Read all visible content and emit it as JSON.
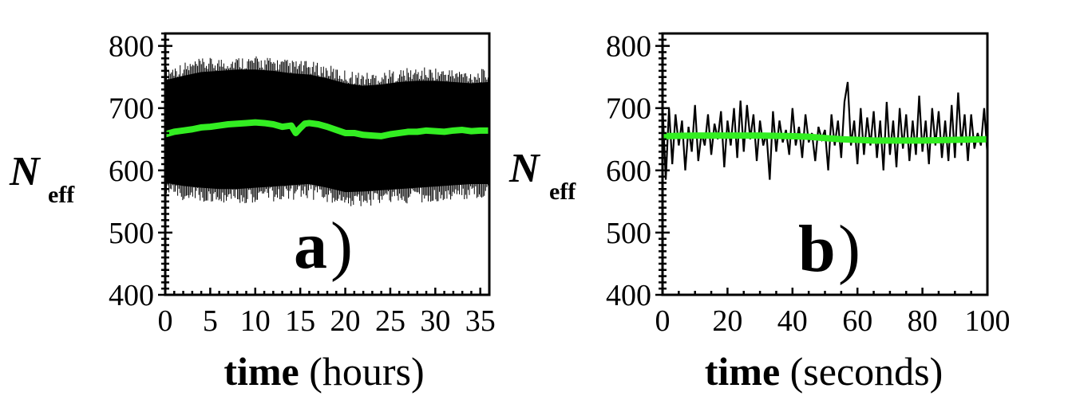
{
  "chart_data": [
    {
      "type": "line",
      "panel_label": "a",
      "panel_paren": ")",
      "xlabel_bold": "time",
      "xlabel_rest": " (hours)",
      "ylabel_main": "N",
      "ylabel_sub": "eff",
      "xlim": [
        0,
        36
      ],
      "ylim": [
        400,
        820
      ],
      "x_ticks": [
        "0",
        "5",
        "10",
        "15",
        "20",
        "25",
        "30",
        "35"
      ],
      "y_ticks": [
        "400",
        "500",
        "600",
        "700",
        "800"
      ],
      "grid": false,
      "colors": {
        "raw": "#000000",
        "smoothed": "#33ee22"
      },
      "raw_band": {
        "x": [
          0,
          2,
          4,
          6,
          8,
          10,
          12,
          14,
          16,
          18,
          20,
          22,
          24,
          26,
          28,
          30,
          32,
          34,
          36
        ],
        "upper": [
          745,
          752,
          758,
          760,
          762,
          762,
          760,
          756,
          754,
          748,
          740,
          736,
          738,
          742,
          744,
          744,
          742,
          740,
          742
        ],
        "lower": [
          580,
          575,
          572,
          570,
          570,
          572,
          574,
          576,
          578,
          572,
          565,
          566,
          568,
          570,
          572,
          574,
          576,
          578,
          578
        ]
      },
      "smoothed": {
        "x": [
          0,
          1,
          2,
          3,
          4,
          5,
          6,
          7,
          8,
          9,
          10,
          11,
          12,
          13,
          14,
          14.5,
          15,
          15.5,
          16,
          17,
          18,
          19,
          20,
          21,
          22,
          23,
          24,
          25,
          26,
          27,
          28,
          29,
          30,
          31,
          32,
          33,
          34,
          35,
          36
        ],
        "y": [
          658,
          662,
          664,
          666,
          669,
          670,
          672,
          674,
          675,
          676,
          677,
          676,
          674,
          670,
          672,
          660,
          668,
          675,
          676,
          674,
          670,
          665,
          660,
          660,
          657,
          656,
          655,
          658,
          660,
          662,
          662,
          664,
          663,
          662,
          664,
          665,
          663,
          664,
          664
        ]
      }
    },
    {
      "type": "line",
      "panel_label": "b",
      "panel_paren": ")",
      "xlabel_bold": "time",
      "xlabel_rest": " (seconds)",
      "ylabel_main": "N",
      "ylabel_sub": "eff",
      "xlim": [
        0,
        100
      ],
      "ylim": [
        400,
        820
      ],
      "x_ticks": [
        "0",
        "20",
        "40",
        "60",
        "80",
        "100"
      ],
      "y_ticks": [
        "400",
        "500",
        "600",
        "700",
        "800"
      ],
      "grid": false,
      "colors": {
        "raw": "#000000",
        "smoothed": "#33ee22"
      },
      "raw": {
        "x": [
          0,
          1,
          2,
          3,
          4,
          5,
          6,
          7,
          8,
          9,
          10,
          11,
          12,
          13,
          14,
          15,
          16,
          17,
          18,
          19,
          20,
          21,
          22,
          23,
          24,
          25,
          26,
          27,
          28,
          29,
          30,
          31,
          32,
          33,
          34,
          35,
          36,
          37,
          38,
          39,
          40,
          41,
          42,
          43,
          44,
          45,
          46,
          47,
          48,
          49,
          50,
          51,
          52,
          53,
          54,
          55,
          56,
          57,
          58,
          59,
          60,
          61,
          62,
          63,
          64,
          65,
          66,
          67,
          68,
          69,
          70,
          71,
          72,
          73,
          74,
          75,
          76,
          77,
          78,
          79,
          80,
          81,
          82,
          83,
          84,
          85,
          86,
          87,
          88,
          89,
          90,
          91,
          92,
          93,
          94,
          95,
          96,
          97,
          98,
          99,
          100
        ],
        "y": [
          705,
          585,
          700,
          610,
          690,
          640,
          680,
          600,
          670,
          630,
          705,
          615,
          660,
          640,
          690,
          625,
          675,
          650,
          695,
          605,
          680,
          640,
          700,
          620,
          712,
          630,
          705,
          650,
          690,
          615,
          680,
          640,
          660,
          585,
          695,
          630,
          680,
          645,
          665,
          625,
          700,
          640,
          670,
          620,
          690,
          645,
          660,
          615,
          670,
          650,
          665,
          600,
          690,
          640,
          680,
          620,
          710,
          742,
          640,
          680,
          610,
          700,
          625,
          685,
          640,
          695,
          620,
          680,
          600,
          710,
          625,
          680,
          605,
          700,
          635,
          690,
          615,
          680,
          625,
          720,
          630,
          680,
          610,
          700,
          640,
          695,
          620,
          680,
          615,
          705,
          620,
          725,
          640,
          690,
          615,
          690,
          635,
          660,
          640,
          700,
          625
        ]
      },
      "smoothed": {
        "x": [
          0,
          10,
          20,
          30,
          40,
          45,
          50,
          55,
          60,
          65,
          70,
          80,
          90,
          100
        ],
        "y": [
          655,
          656,
          656,
          656,
          655,
          654,
          652,
          650,
          649,
          648,
          648,
          648,
          649,
          650
        ]
      }
    }
  ]
}
